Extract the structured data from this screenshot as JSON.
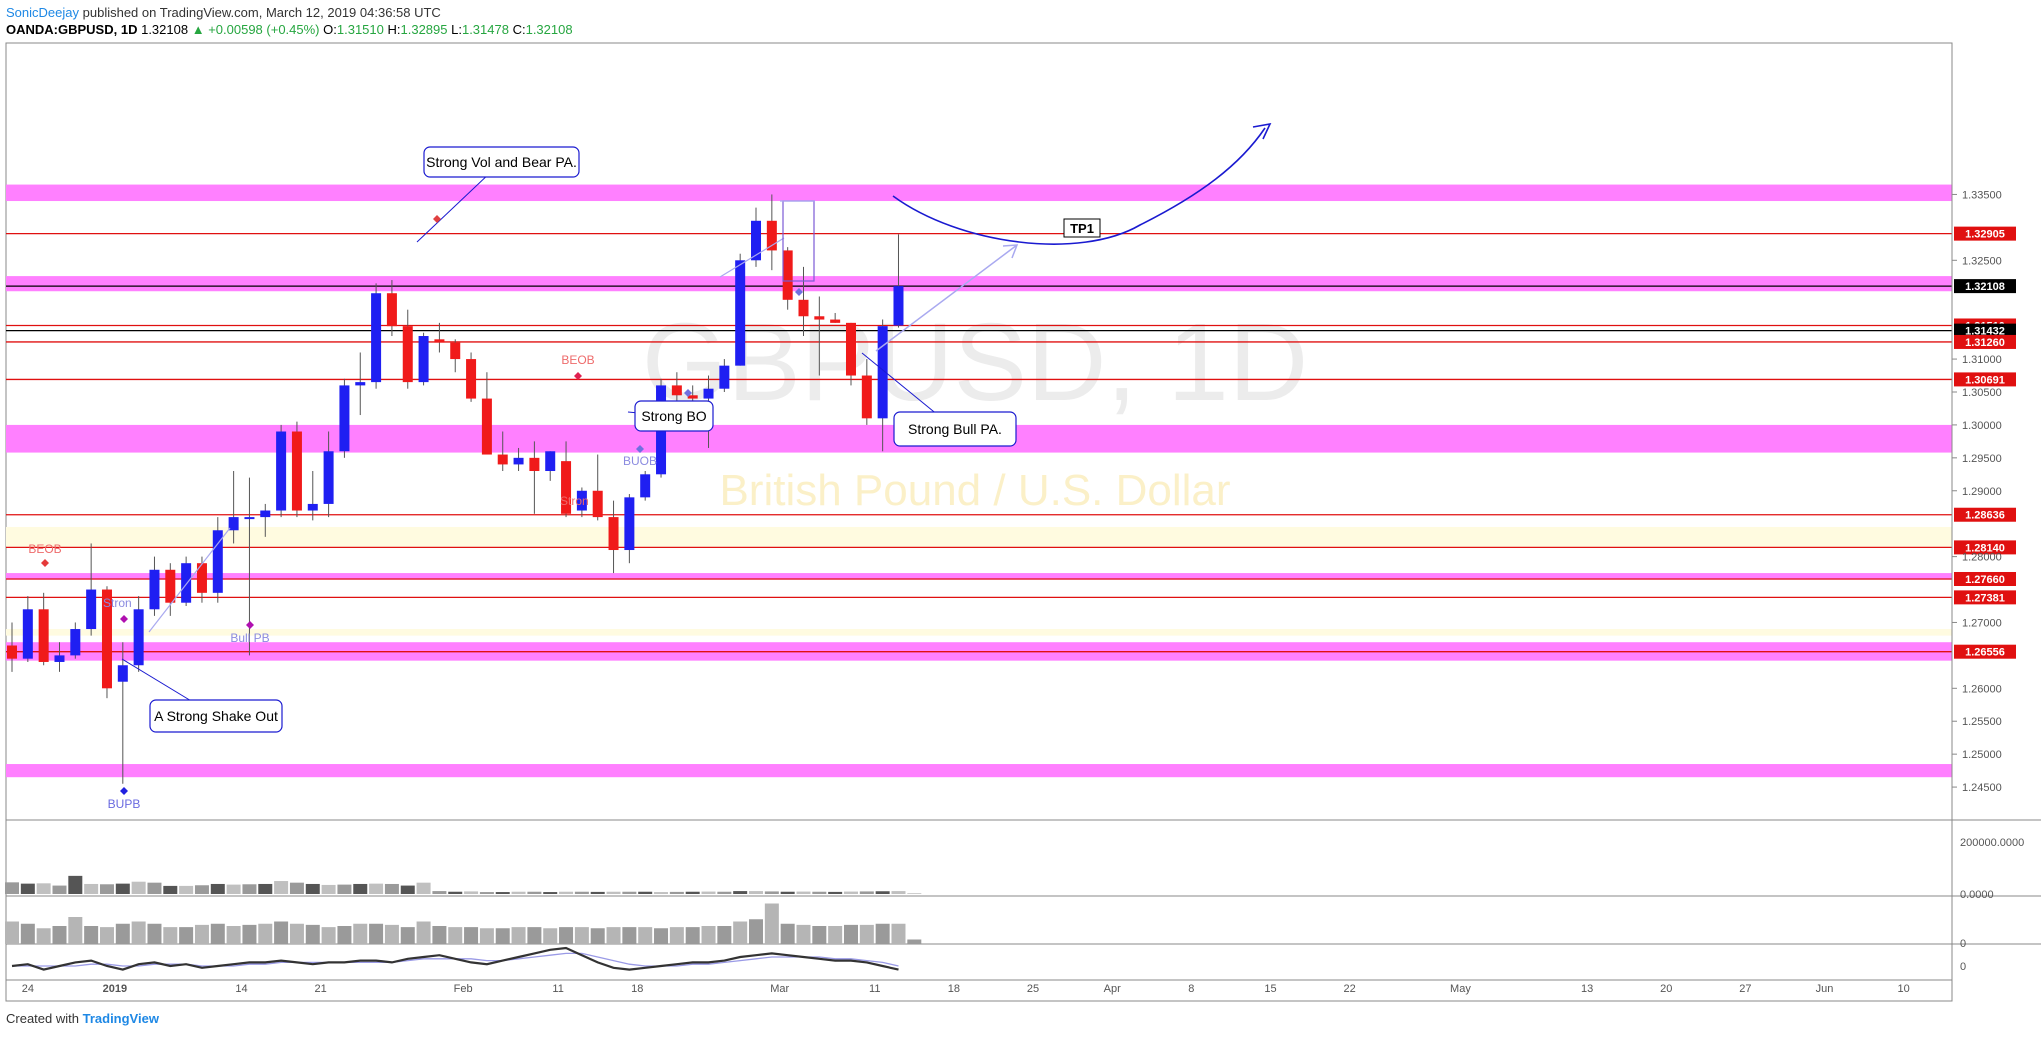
{
  "header": {
    "author": "SonicDeejay",
    "published": "published on TradingView.com, March 12, 2019 04:36:58 UTC",
    "symbol": "OANDA:GBPUSD, 1D",
    "last": "1.32108",
    "change": "▲ +0.00598 (+0.45%)",
    "o_label": "O:",
    "o": "1.31510",
    "h_label": "H:",
    "h": "1.32895",
    "l_label": "L:",
    "l": "1.31478",
    "c_label": "C:",
    "c": "1.32108"
  },
  "footer": {
    "created": "Created with",
    "brand": "TradingView"
  },
  "watermark": {
    "symbol": "GBPUSD, 1D",
    "name": "British Pound / U.S. Dollar"
  },
  "colors": {
    "up": "#1f1ff2",
    "down": "#f01a1a",
    "zone": "#ff80ff",
    "zone_light": "#fffbe0",
    "line": "#e01010",
    "arrow": "#1a1ad0"
  },
  "chart_data": {
    "type": "candlestick",
    "ylim": [
      1.24,
      1.358
    ],
    "y_ticks": [
      1.245,
      1.25,
      1.255,
      1.26,
      1.265,
      1.27,
      1.275,
      1.28,
      1.285,
      1.29,
      1.295,
      1.3,
      1.305,
      1.31,
      1.315,
      1.32,
      1.325,
      1.33,
      1.335
    ],
    "y_tick_labels": [
      "1.24500",
      "1.25000",
      "1.25500",
      "1.26000",
      "1.26500",
      "1.27000",
      "1.27500",
      "1.28000",
      "1.28500",
      "1.29000",
      "1.29500",
      "1.30000",
      "1.30500",
      "1.31000",
      "1.31500",
      "1.32000",
      "1.32500",
      "1.33000",
      "1.33500"
    ],
    "x_labels": [
      {
        "label": "24",
        "bar": 1.0
      },
      {
        "label": "2019",
        "bar": 6.5
      },
      {
        "label": "14",
        "bar": 14.5
      },
      {
        "label": "21",
        "bar": 19.5
      },
      {
        "label": "Feb",
        "bar": 28.5
      },
      {
        "label": "11",
        "bar": 34.5
      },
      {
        "label": "18",
        "bar": 39.5
      },
      {
        "label": "Mar",
        "bar": 48.5
      },
      {
        "label": "11",
        "bar": 54.5
      },
      {
        "label": "18",
        "bar": 59.5
      },
      {
        "label": "25",
        "bar": 64.5
      },
      {
        "label": "Apr",
        "bar": 69.5
      },
      {
        "label": "8",
        "bar": 74.5
      },
      {
        "label": "15",
        "bar": 79.5
      },
      {
        "label": "22",
        "bar": 84.5
      },
      {
        "label": "May",
        "bar": 91.5
      },
      {
        "label": "13",
        "bar": 99.5
      },
      {
        "label": "20",
        "bar": 104.5
      },
      {
        "label": "27",
        "bar": 109.5
      },
      {
        "label": "Jun",
        "bar": 114.5
      },
      {
        "label": "10",
        "bar": 119.5
      }
    ],
    "candles": [
      {
        "o": 1.2665,
        "h": 1.27,
        "l": 1.2625,
        "c": 1.2645
      },
      {
        "o": 1.2645,
        "h": 1.274,
        "l": 1.264,
        "c": 1.272
      },
      {
        "o": 1.272,
        "h": 1.2745,
        "l": 1.2635,
        "c": 1.264
      },
      {
        "o": 1.264,
        "h": 1.267,
        "l": 1.2625,
        "c": 1.265
      },
      {
        "o": 1.265,
        "h": 1.27,
        "l": 1.2645,
        "c": 1.269
      },
      {
        "o": 1.269,
        "h": 1.282,
        "l": 1.268,
        "c": 1.275
      },
      {
        "o": 1.275,
        "h": 1.2755,
        "l": 1.2585,
        "c": 1.26
      },
      {
        "o": 1.261,
        "h": 1.267,
        "l": 1.2455,
        "c": 1.2635
      },
      {
        "o": 1.2635,
        "h": 1.274,
        "l": 1.2625,
        "c": 1.272
      },
      {
        "o": 1.272,
        "h": 1.28,
        "l": 1.271,
        "c": 1.278
      },
      {
        "o": 1.278,
        "h": 1.279,
        "l": 1.271,
        "c": 1.273
      },
      {
        "o": 1.273,
        "h": 1.28,
        "l": 1.2725,
        "c": 1.279
      },
      {
        "o": 1.279,
        "h": 1.28,
        "l": 1.273,
        "c": 1.2745
      },
      {
        "o": 1.2745,
        "h": 1.286,
        "l": 1.273,
        "c": 1.284
      },
      {
        "o": 1.284,
        "h": 1.293,
        "l": 1.282,
        "c": 1.286
      },
      {
        "o": 1.286,
        "h": 1.292,
        "l": 1.265,
        "c": 1.286
      },
      {
        "o": 1.286,
        "h": 1.288,
        "l": 1.283,
        "c": 1.287
      },
      {
        "o": 1.287,
        "h": 1.3,
        "l": 1.286,
        "c": 1.299
      },
      {
        "o": 1.299,
        "h": 1.3005,
        "l": 1.286,
        "c": 1.287
      },
      {
        "o": 1.287,
        "h": 1.293,
        "l": 1.2855,
        "c": 1.288
      },
      {
        "o": 1.288,
        "h": 1.299,
        "l": 1.286,
        "c": 1.296
      },
      {
        "o": 1.296,
        "h": 1.307,
        "l": 1.295,
        "c": 1.306
      },
      {
        "o": 1.306,
        "h": 1.311,
        "l": 1.3015,
        "c": 1.3065
      },
      {
        "o": 1.3065,
        "h": 1.3215,
        "l": 1.3055,
        "c": 1.32
      },
      {
        "o": 1.32,
        "h": 1.322,
        "l": 1.3135,
        "c": 1.315
      },
      {
        "o": 1.315,
        "h": 1.3175,
        "l": 1.3055,
        "c": 1.3065
      },
      {
        "o": 1.3065,
        "h": 1.314,
        "l": 1.306,
        "c": 1.3135
      },
      {
        "o": 1.313,
        "h": 1.3155,
        "l": 1.311,
        "c": 1.3125
      },
      {
        "o": 1.3125,
        "h": 1.313,
        "l": 1.308,
        "c": 1.31
      },
      {
        "o": 1.31,
        "h": 1.311,
        "l": 1.3035,
        "c": 1.304
      },
      {
        "o": 1.304,
        "h": 1.308,
        "l": 1.296,
        "c": 1.2955
      },
      {
        "o": 1.2955,
        "h": 1.299,
        "l": 1.293,
        "c": 1.294
      },
      {
        "o": 1.294,
        "h": 1.2965,
        "l": 1.293,
        "c": 1.295
      },
      {
        "o": 1.295,
        "h": 1.2975,
        "l": 1.2865,
        "c": 1.293
      },
      {
        "o": 1.293,
        "h": 1.296,
        "l": 1.2915,
        "c": 1.296
      },
      {
        "o": 1.2945,
        "h": 1.2975,
        "l": 1.286,
        "c": 1.2865
      },
      {
        "o": 1.287,
        "h": 1.2905,
        "l": 1.286,
        "c": 1.29
      },
      {
        "o": 1.29,
        "h": 1.2955,
        "l": 1.2855,
        "c": 1.286
      },
      {
        "o": 1.286,
        "h": 1.2885,
        "l": 1.2775,
        "c": 1.281
      },
      {
        "o": 1.281,
        "h": 1.2895,
        "l": 1.279,
        "c": 1.289
      },
      {
        "o": 1.289,
        "h": 1.293,
        "l": 1.2885,
        "c": 1.2925
      },
      {
        "o": 1.2925,
        "h": 1.307,
        "l": 1.292,
        "c": 1.306
      },
      {
        "o": 1.306,
        "h": 1.308,
        "l": 1.3015,
        "c": 1.3045
      },
      {
        "o": 1.3045,
        "h": 1.306,
        "l": 1.3035,
        "c": 1.304
      },
      {
        "o": 1.304,
        "h": 1.3075,
        "l": 1.2965,
        "c": 1.3055
      },
      {
        "o": 1.3055,
        "h": 1.31,
        "l": 1.305,
        "c": 1.309
      },
      {
        "o": 1.309,
        "h": 1.326,
        "l": 1.309,
        "c": 1.325
      },
      {
        "o": 1.325,
        "h": 1.333,
        "l": 1.324,
        "c": 1.331
      },
      {
        "o": 1.331,
        "h": 1.335,
        "l": 1.3235,
        "c": 1.3265
      },
      {
        "o": 1.3265,
        "h": 1.327,
        "l": 1.3175,
        "c": 1.319
      },
      {
        "o": 1.319,
        "h": 1.324,
        "l": 1.3135,
        "c": 1.3165
      },
      {
        "o": 1.3165,
        "h": 1.3195,
        "l": 1.3075,
        "c": 1.316
      },
      {
        "o": 1.316,
        "h": 1.317,
        "l": 1.3155,
        "c": 1.3155
      },
      {
        "o": 1.3155,
        "h": 1.3155,
        "l": 1.306,
        "c": 1.3075
      },
      {
        "o": 1.3075,
        "h": 1.31,
        "l": 1.3,
        "c": 1.301
      },
      {
        "o": 1.301,
        "h": 1.316,
        "l": 1.296,
        "c": 1.315
      },
      {
        "o": 1.3151,
        "h": 1.32895,
        "l": 1.31478,
        "c": 1.32108
      }
    ],
    "zones": [
      {
        "from": 1.334,
        "to": 1.3365,
        "style": "magenta"
      },
      {
        "from": 1.3203,
        "to": 1.3226,
        "style": "magenta"
      },
      {
        "from": 1.2958,
        "to": 1.3,
        "style": "magenta"
      },
      {
        "from": 1.2815,
        "to": 1.2845,
        "style": "yellow"
      },
      {
        "from": 1.2765,
        "to": 1.2775,
        "style": "magenta"
      },
      {
        "from": 1.268,
        "to": 1.269,
        "style": "yellow"
      },
      {
        "from": 1.2642,
        "to": 1.267,
        "style": "magenta"
      },
      {
        "from": 1.2465,
        "to": 1.2485,
        "style": "magenta"
      }
    ],
    "levels": [
      {
        "value": 1.32905,
        "label": "1.32905",
        "color": "#e01010"
      },
      {
        "value": 1.32108,
        "label": "1.32108",
        "color": "#000000"
      },
      {
        "value": 1.3151,
        "label": "1.31510",
        "color": "#e01010"
      },
      {
        "value": 1.31432,
        "label": "1.31432",
        "color": "#000000"
      },
      {
        "value": 1.3126,
        "label": "1.31260",
        "color": "#e01010"
      },
      {
        "value": 1.30691,
        "label": "1.30691",
        "color": "#e01010"
      },
      {
        "value": 1.28636,
        "label": "1.28636",
        "color": "#e01010"
      },
      {
        "value": 1.2814,
        "label": "1.28140",
        "color": "#e01010"
      },
      {
        "value": 1.2766,
        "label": "1.27660",
        "color": "#e01010"
      },
      {
        "value": 1.27381,
        "label": "1.27381",
        "color": "#e01010"
      },
      {
        "value": 1.26556,
        "label": "1.26556",
        "color": "#e01010"
      }
    ],
    "annotations": [
      {
        "text": "Strong Vol and Bear PA."
      },
      {
        "text": "Strong BO"
      },
      {
        "text": "Strong Bull PA."
      },
      {
        "text": "A Strong Shake Out"
      },
      {
        "text": "TP1"
      }
    ],
    "markers": [
      {
        "text": "BEOB"
      },
      {
        "text": "Bull PB"
      },
      {
        "text": "BUOB"
      },
      {
        "text": "BEOB"
      },
      {
        "text": "BUPB"
      },
      {
        "text": "Stron"
      },
      {
        "text": "Stron"
      }
    ],
    "volume": {
      "ylabels": [
        "200000.0000",
        "0.0000"
      ],
      "values": [
        36000,
        32000,
        33000,
        26000,
        56000,
        31000,
        30000,
        32000,
        38000,
        35000,
        25000,
        25000,
        27000,
        31000,
        29000,
        30000,
        31000,
        40000,
        35000,
        31000,
        28000,
        29000,
        31000,
        32000,
        31000,
        26000,
        35000,
        9000,
        7000,
        8000,
        6000,
        6000,
        7000,
        7000,
        6000,
        7000,
        7000,
        6500,
        7000,
        7000,
        7000,
        6000,
        6500,
        7000,
        7500,
        7000,
        9000,
        9000,
        8000,
        7000,
        7500,
        7000,
        6500,
        7500,
        8000,
        8500,
        9000,
        1500
      ]
    },
    "indicator2": {
      "ylabel": "0",
      "values": [
        20,
        18,
        14,
        16,
        24,
        16,
        15,
        18,
        20,
        18,
        15,
        15,
        17,
        18,
        16,
        17,
        18,
        20,
        18,
        17,
        15,
        16,
        18,
        18,
        17,
        15,
        20,
        16,
        15,
        15,
        14,
        14,
        15,
        15,
        14,
        15,
        15,
        14,
        15,
        15,
        15,
        14,
        15,
        15,
        16,
        16,
        20,
        22,
        36,
        18,
        17,
        16,
        16,
        17,
        17,
        18,
        18,
        4
      ]
    },
    "oscillator": {
      "ylabel": "0",
      "main": [
        0,
        1,
        -2,
        0,
        2,
        3,
        0,
        -2,
        1,
        2,
        0,
        1,
        -1,
        0,
        1,
        2,
        2,
        3,
        2,
        1,
        2,
        2,
        3,
        3,
        2,
        4,
        5,
        6,
        4,
        2,
        1,
        3,
        5,
        7,
        9,
        10,
        6,
        2,
        -1,
        -2,
        -1,
        0,
        1,
        2,
        2,
        3,
        5,
        6,
        7,
        6,
        5,
        4,
        3,
        3,
        2,
        0,
        -2
      ],
      "signal": [
        0,
        0,
        0,
        0,
        0,
        1,
        1,
        0,
        0,
        1,
        1,
        1,
        0,
        0,
        0,
        1,
        1,
        2,
        2,
        2,
        2,
        2,
        2,
        2,
        2,
        3,
        4,
        4,
        4,
        4,
        3,
        3,
        4,
        5,
        6,
        7,
        7,
        5,
        3,
        1,
        0,
        0,
        0,
        1,
        1,
        2,
        3,
        4,
        5,
        5,
        5,
        5,
        4,
        4,
        3,
        2,
        0
      ]
    }
  }
}
